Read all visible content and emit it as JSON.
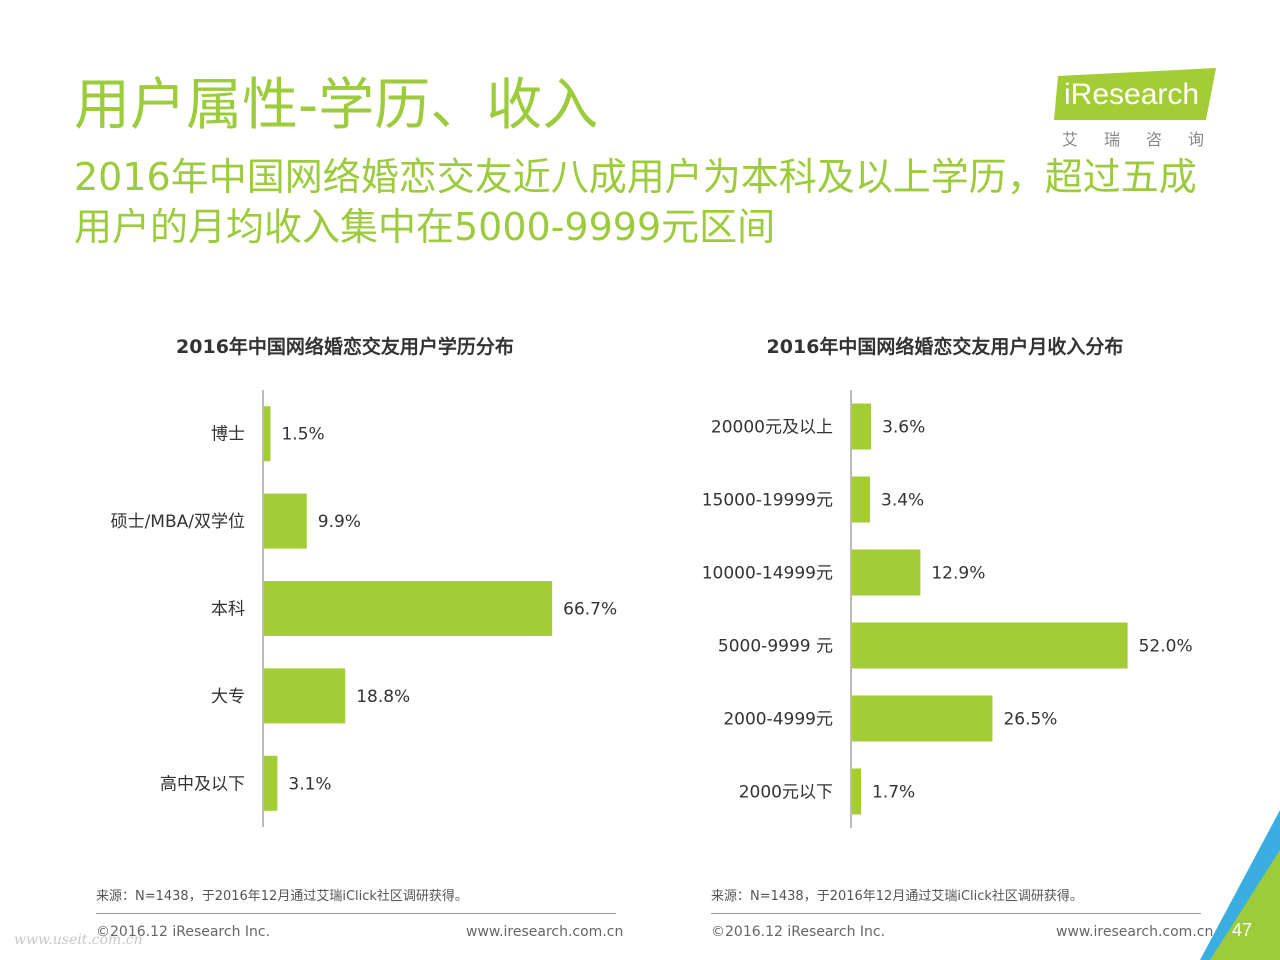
{
  "header": {
    "title": "用户属性-学历、收入",
    "subtitle": "2016年中国网络婚恋交友近八成用户为本科及以上学历，超过五成用户的月均收入集中在5000-9999元区间"
  },
  "logo": {
    "text": "iResearch",
    "sub": "艾瑞咨询"
  },
  "colors": {
    "accent": "#9ccb3b",
    "bar": "#a4cc34",
    "corner_green": "#9ccb3b",
    "corner_blue": "#3aaee0"
  },
  "chart_data": [
    {
      "type": "bar",
      "orientation": "horizontal",
      "title": "2016年中国网络婚恋交友用户学历分布",
      "categories": [
        "博士",
        "硕士/MBA/双学位",
        "本科",
        "大专",
        "高中及以下"
      ],
      "values": [
        1.5,
        9.9,
        66.7,
        18.8,
        3.1
      ],
      "labels": [
        "1.5%",
        "9.9%",
        "66.7%",
        "18.8%",
        "3.1%"
      ],
      "unit": "%",
      "xlim": [
        0,
        100
      ]
    },
    {
      "type": "bar",
      "orientation": "horizontal",
      "title": "2016年中国网络婚恋交友用户月收入分布",
      "categories": [
        "20000元及以上",
        "15000-19999元",
        "10000-14999元",
        "5000-9999 元",
        "2000-4999元",
        "2000元以下"
      ],
      "values": [
        3.6,
        3.4,
        12.9,
        52.0,
        26.5,
        1.7
      ],
      "labels": [
        "3.6%",
        "3.4%",
        "12.9%",
        "52.0%",
        "26.5%",
        "1.7%"
      ],
      "unit": "%",
      "xlim": [
        0,
        80
      ]
    }
  ],
  "footer": {
    "source_left": "来源：N=1438，于2016年12月通过艾瑞iClick社区调研获得。",
    "source_right": "来源：N=1438，于2016年12月通过艾瑞iClick社区调研获得。",
    "copyright_left": "©2016.12 iResearch Inc.",
    "url_left": "www.iresearch.com.cn",
    "copyright_right": "©2016.12 iResearch Inc.",
    "url_right": "www.iresearch.com.cn",
    "page_number": "47",
    "watermark": "www.useit.com.cn"
  }
}
